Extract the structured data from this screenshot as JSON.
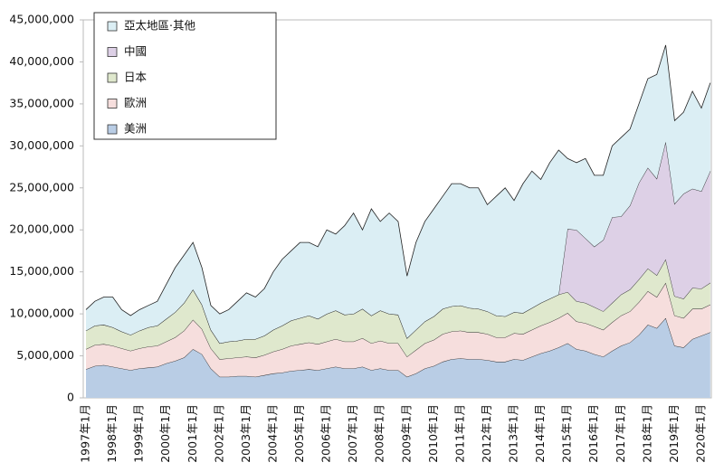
{
  "chart_data": {
    "type": "stacked-area",
    "categories": [
      "1997年1月",
      null,
      null,
      "1998年1月",
      null,
      null,
      "1999年1月",
      null,
      null,
      "2000年1月",
      null,
      null,
      "2001年1月",
      null,
      null,
      "2002年1月",
      null,
      null,
      "2003年1月",
      null,
      null,
      "2004年1月",
      null,
      null,
      "2005年1月",
      null,
      null,
      "2006年1月",
      null,
      null,
      "2007年1月",
      null,
      null,
      "2008年1月",
      null,
      null,
      "2009年1月",
      null,
      null,
      "2010年1月",
      null,
      null,
      "2011年1月",
      null,
      null,
      "2012年1月",
      null,
      null,
      "2013年1月",
      null,
      null,
      "2014年1月",
      null,
      null,
      "2015年1月",
      null,
      null,
      "2016年1月",
      null,
      null,
      "2017年1月",
      null,
      null,
      "2018年1月",
      null,
      null,
      "2019年1月",
      null,
      null,
      "2020年1月",
      null
    ],
    "series": [
      {
        "name": "美洲",
        "color": "#b9cde5",
        "values": [
          3400000.0,
          3800000.0,
          3900000.0,
          3700000.0,
          3500000.0,
          3300000.0,
          3500000.0,
          3600000.0,
          3700000.0,
          4100000.0,
          4400000.0,
          4800000.0,
          5800000.0,
          5200000.0,
          3500000.0,
          2500000.0,
          2500000.0,
          2600000.0,
          2600000.0,
          2500000.0,
          2700000.0,
          2900000.0,
          3000000.0,
          3200000.0,
          3300000.0,
          3400000.0,
          3300000.0,
          3500000.0,
          3700000.0,
          3500000.0,
          3500000.0,
          3700000.0,
          3300000.0,
          3500000.0,
          3300000.0,
          3300000.0,
          2500000.0,
          2900000.0,
          3500000.0,
          3800000.0,
          4300000.0,
          4600000.0,
          4700000.0,
          4600000.0,
          4600000.0,
          4500000.0,
          4300000.0,
          4300000.0,
          4600000.0,
          4500000.0,
          4900000.0,
          5300000.0,
          5600000.0,
          6000000.0,
          6500000.0,
          5800000.0,
          5600000.0,
          5200000.0,
          4900000.0,
          5600000.0,
          6200000.0,
          6600000.0,
          7500000.0,
          8700000.0,
          8300000.0,
          9500000.0,
          6200000.0,
          6000000.0,
          7000000.0,
          7400000.0,
          7800000.0
        ]
      },
      {
        "name": "歐洲",
        "color": "#f6dedd",
        "values": [
          2400000.0,
          2500000.0,
          2500000.0,
          2500000.0,
          2400000.0,
          2300000.0,
          2400000.0,
          2500000.0,
          2500000.0,
          2600000.0,
          2800000.0,
          3200000.0,
          3500000.0,
          3000000.0,
          2400000.0,
          2100000.0,
          2200000.0,
          2200000.0,
          2300000.0,
          2300000.0,
          2400000.0,
          2600000.0,
          2800000.0,
          3000000.0,
          3100000.0,
          3200000.0,
          3100000.0,
          3200000.0,
          3300000.0,
          3200000.0,
          3200000.0,
          3400000.0,
          3200000.0,
          3300000.0,
          3200000.0,
          3200000.0,
          2400000.0,
          2800000.0,
          3000000.0,
          3100000.0,
          3300000.0,
          3300000.0,
          3300000.0,
          3200000.0,
          3200000.0,
          3100000.0,
          2900000.0,
          2900000.0,
          3100000.0,
          3100000.0,
          3200000.0,
          3300000.0,
          3400000.0,
          3500000.0,
          3600000.0,
          3300000.0,
          3300000.0,
          3300000.0,
          3200000.0,
          3400000.0,
          3600000.0,
          3700000.0,
          3900000.0,
          4000000.0,
          3700000.0,
          4200000.0,
          3600000.0,
          3500000.0,
          3600000.0,
          3200000.0,
          3300000.0
        ]
      },
      {
        "name": "日本",
        "color": "#dfe8cd",
        "values": [
          2200000.0,
          2300000.0,
          2300000.0,
          2200000.0,
          2000000.0,
          1900000.0,
          2100000.0,
          2300000.0,
          2400000.0,
          2700000.0,
          3000000.0,
          3300000.0,
          3600000.0,
          2900000.0,
          2200000.0,
          1900000.0,
          2000000.0,
          2000000.0,
          2100000.0,
          2200000.0,
          2300000.0,
          2600000.0,
          2800000.0,
          3000000.0,
          3100000.0,
          3200000.0,
          3000000.0,
          3300000.0,
          3400000.0,
          3200000.0,
          3300000.0,
          3500000.0,
          3300000.0,
          3600000.0,
          3500000.0,
          3400000.0,
          2200000.0,
          2400000.0,
          2600000.0,
          2800000.0,
          3000000.0,
          3000000.0,
          3000000.0,
          2900000.0,
          2800000.0,
          2700000.0,
          2600000.0,
          2500000.0,
          2500000.0,
          2500000.0,
          2600000.0,
          2700000.0,
          2800000.0,
          2800000.0,
          2500000.0,
          2400000.0,
          2400000.0,
          2300000.0,
          2200000.0,
          2300000.0,
          2500000.0,
          2600000.0,
          2700000.0,
          2700000.0,
          2600000.0,
          2800000.0,
          2300000.0,
          2300000.0,
          2500000.0,
          2400000.0,
          2600000.0
        ]
      },
      {
        "name": "中國",
        "color": "#ddd0e6",
        "values": [
          0,
          0,
          0,
          0,
          0,
          0,
          0,
          0,
          0,
          0,
          0,
          0,
          0,
          0,
          0,
          0,
          0,
          0,
          0,
          0,
          0,
          0,
          0,
          0,
          0,
          0,
          0,
          0,
          0,
          0,
          0,
          0,
          0,
          0,
          0,
          0,
          0,
          0,
          0,
          0,
          0,
          0,
          0,
          0,
          0,
          0,
          0,
          0,
          0,
          0,
          0,
          0,
          0,
          0,
          7500000.0,
          8500000.0,
          7700000.0,
          7200000.0,
          8500000.0,
          10200000.0,
          9300000.0,
          10000000.0,
          11500000.0,
          12000000.0,
          11500000.0,
          14000000.0,
          11000000.0,
          12500000.0,
          11800000.0,
          11600000.0,
          13300000.0
        ]
      },
      {
        "name": "亞太地區·其他",
        "color": "#dbeef4",
        "values": [
          2500000.0,
          2900000.0,
          3300000.0,
          3600000.0,
          2600000.0,
          2300000.0,
          2500000.0,
          2600000.0,
          2900000.0,
          4100000.0,
          5300000.0,
          5700000.0,
          5600000.0,
          4400000.0,
          2900000.0,
          3500000.0,
          3800000.0,
          4700000.0,
          5500000.0,
          5000000.0,
          5600000.0,
          6900000.0,
          7900000.0,
          8300000.0,
          9000000.0,
          8700000.0,
          8600000.0,
          10000000.0,
          9100000.0,
          10600000.0,
          12000000.0,
          9400000.0,
          12700000.0,
          10600000.0,
          12000000.0,
          11100000.0,
          7400000.0,
          10400000.0,
          11900000.0,
          12800000.0,
          13400000.0,
          14600000.0,
          14500000.0,
          14300000.0,
          14400000.0,
          12700000.0,
          14200000.0,
          15300000.0,
          13300000.0,
          15400000.0,
          16300000.0,
          14700000.0,
          16200000.0,
          17200000.0,
          8400000.0,
          8000000.0,
          9500000.0,
          8500000.0,
          7700000.0,
          8500000.0,
          9400000.0,
          9100000.0,
          9400000.0,
          10600000.0,
          12400000.0,
          11500000.0,
          9900000.0,
          9700000.0,
          11600000.0,
          9900000.0,
          10500000.0
        ]
      }
    ],
    "ylim": [
      0,
      45000000
    ],
    "yticks": [
      0,
      {
        "value": 5000000,
        "label": "5,000,000"
      },
      {
        "value": 10000000,
        "label": "10,000,000"
      },
      {
        "value": 15000000,
        "label": "15,000,000"
      },
      {
        "value": 20000000,
        "label": "20,000,000"
      },
      {
        "value": 25000000,
        "label": "25,000,000"
      },
      {
        "value": 30000000,
        "label": "30,000,000"
      },
      {
        "value": 35000000,
        "label": "35,000,000"
      },
      {
        "value": 40000000,
        "label": "40,000,000"
      },
      {
        "value": 45000000,
        "label": "45,000,000"
      }
    ],
    "grid": false,
    "legend": "upper-left"
  }
}
